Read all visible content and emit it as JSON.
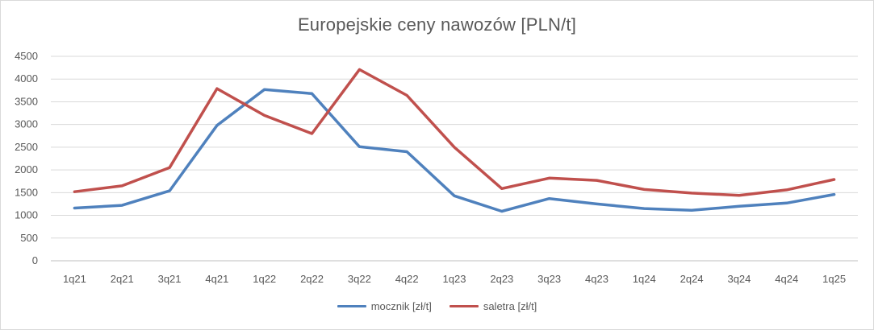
{
  "chart_data": {
    "type": "line",
    "title": "Europejskie ceny nawozów [PLN/t]",
    "categories": [
      "1q21",
      "2q21",
      "3q21",
      "4q21",
      "1q22",
      "2q22",
      "3q22",
      "4q22",
      "1q23",
      "2q23",
      "3q23",
      "4q23",
      "1q24",
      "2q24",
      "3q24",
      "4q24",
      "1q25"
    ],
    "ylim": [
      0,
      4500
    ],
    "yticks": [
      0,
      500,
      1000,
      1500,
      2000,
      2500,
      3000,
      3500,
      4000,
      4500
    ],
    "grid": true,
    "legend_position": "bottom",
    "series": [
      {
        "name": "mocznik [zł/t]",
        "color": "#4f81bd",
        "values": [
          1160,
          1220,
          1540,
          2980,
          3770,
          3680,
          2510,
          2400,
          1430,
          1090,
          1370,
          1250,
          1150,
          1110,
          1200,
          1270,
          1460
        ]
      },
      {
        "name": "saletra [zł/t]",
        "color": "#c0504d",
        "values": [
          1520,
          1650,
          2050,
          3790,
          3200,
          2800,
          4210,
          3640,
          2500,
          1590,
          1820,
          1770,
          1570,
          1490,
          1440,
          1560,
          1790
        ]
      }
    ]
  }
}
